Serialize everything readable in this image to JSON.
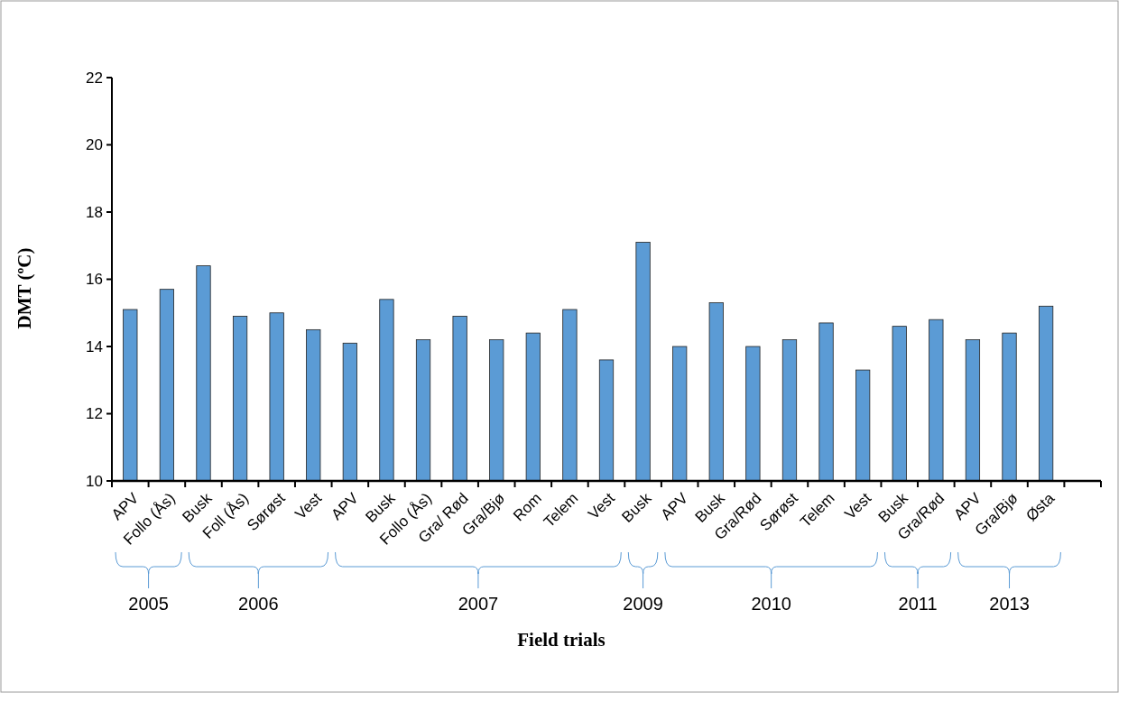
{
  "chart_data": {
    "type": "bar",
    "xlabel": "Field trials",
    "ylabel": "DMT (ºC)",
    "categories": [
      "APV",
      "Follo (Ås)",
      "Busk",
      "Foll (Ås)",
      "Sørøst",
      "Vest",
      "APV",
      "Busk",
      "Follo (Ås)",
      "Gra/ Rød",
      "Gra/Bjø",
      "Rom",
      "Telem",
      "Vest",
      "Busk",
      "APV",
      "Busk",
      "Gra/Rød",
      "Sørøst",
      "Telem",
      "Vest",
      "Busk",
      "Gra/Rød",
      "APV",
      "Gra/Bjø",
      "Østa",
      null
    ],
    "values": [
      15.1,
      15.7,
      16.4,
      14.9,
      15.0,
      14.5,
      14.1,
      15.4,
      14.2,
      14.9,
      14.2,
      14.4,
      15.1,
      13.6,
      17.1,
      14.0,
      15.3,
      14.0,
      14.2,
      14.7,
      13.3,
      14.6,
      14.8,
      14.2,
      14.4,
      15.2,
      null
    ],
    "color": "#5b9bd5",
    "ylim": [
      10,
      22
    ],
    "yticks": [
      10,
      12,
      14,
      16,
      18,
      20,
      22
    ],
    "grid": false,
    "annotations": [
      "2005",
      "2006",
      "2007",
      "2009",
      "2010",
      "2011",
      "2013"
    ]
  }
}
